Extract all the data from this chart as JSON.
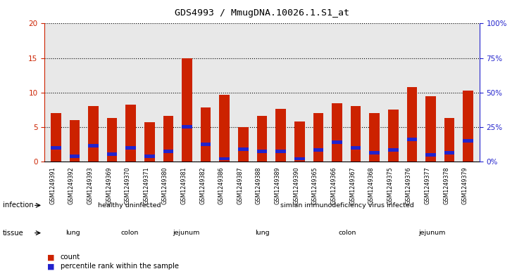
{
  "title": "GDS4993 / MmugDNA.10026.1.S1_at",
  "samples": [
    "GSM1249391",
    "GSM1249392",
    "GSM1249393",
    "GSM1249369",
    "GSM1249370",
    "GSM1249371",
    "GSM1249380",
    "GSM1249381",
    "GSM1249382",
    "GSM1249386",
    "GSM1249387",
    "GSM1249388",
    "GSM1249389",
    "GSM1249390",
    "GSM1249365",
    "GSM1249366",
    "GSM1249367",
    "GSM1249368",
    "GSM1249375",
    "GSM1249376",
    "GSM1249377",
    "GSM1249378",
    "GSM1249379"
  ],
  "counts": [
    7.0,
    6.0,
    8.0,
    6.3,
    8.2,
    5.7,
    6.6,
    15.0,
    7.8,
    9.7,
    5.0,
    6.6,
    7.6,
    5.8,
    7.0,
    8.4,
    8.0,
    7.0,
    7.5,
    10.8,
    9.5,
    6.3,
    10.3
  ],
  "percentiles": [
    10.0,
    4.0,
    11.5,
    5.5,
    10.0,
    4.0,
    7.5,
    25.0,
    12.5,
    2.0,
    9.0,
    7.5,
    7.5,
    2.0,
    8.5,
    14.0,
    10.0,
    6.5,
    8.5,
    16.0,
    5.0,
    6.5,
    15.0
  ],
  "bar_color": "#cc2200",
  "percentile_color": "#2222cc",
  "ylim_left": [
    0,
    20
  ],
  "ylim_right": [
    0,
    100
  ],
  "yticks_left": [
    0,
    5,
    10,
    15,
    20
  ],
  "yticks_right": [
    0,
    25,
    50,
    75,
    100
  ],
  "infection_groups": [
    {
      "label": "healthy uninfected",
      "start": 0,
      "end": 9,
      "color": "#b3e6b3"
    },
    {
      "label": "simian immunodeficiency virus infected",
      "start": 9,
      "end": 23,
      "color": "#66dd66"
    }
  ],
  "tissue_groups": [
    {
      "label": "lung",
      "start": 0,
      "end": 3,
      "color": "#e8b4e8"
    },
    {
      "label": "colon",
      "start": 3,
      "end": 6,
      "color": "#d980d9"
    },
    {
      "label": "jejunum",
      "start": 6,
      "end": 9,
      "color": "#c966c9"
    },
    {
      "label": "lung",
      "start": 9,
      "end": 14,
      "color": "#e8b4e8"
    },
    {
      "label": "colon",
      "start": 14,
      "end": 18,
      "color": "#d980d9"
    },
    {
      "label": "jejunum",
      "start": 18,
      "end": 23,
      "color": "#c966c9"
    }
  ],
  "legend_count_label": "count",
  "legend_percentile_label": "percentile rank within the sample",
  "background_color": "#ffffff",
  "plot_bg_color": "#e8e8e8"
}
